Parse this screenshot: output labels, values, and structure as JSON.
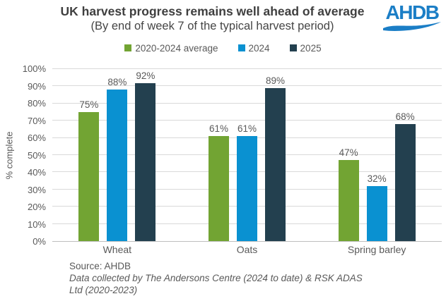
{
  "header": {
    "title": "UK harvest progress remains well ahead of average",
    "subtitle": "(By end of week 7 of the typical harvest period)",
    "logo": {
      "text": "AHDB",
      "color": "#1B7EC6"
    }
  },
  "chart_data": {
    "type": "bar",
    "title": "UK harvest progress remains well ahead of average",
    "subtitle": "(By end of week 7 of the typical harvest period)",
    "categories": [
      "Wheat",
      "Oats",
      "Spring barley"
    ],
    "series": [
      {
        "name": "2020-2024 average",
        "color": "#72A433",
        "values": [
          75,
          61,
          47
        ]
      },
      {
        "name": "2024",
        "color": "#0A91D1",
        "values": [
          88,
          61,
          32
        ]
      },
      {
        "name": "2025",
        "color": "#23404F",
        "values": [
          92,
          89,
          68
        ]
      }
    ],
    "xlabel": "",
    "ylabel": "% complete",
    "ylim": [
      0,
      100
    ],
    "ytick_step": 10,
    "ytick_suffix": "%",
    "value_label_format": "{v}%",
    "grid": true,
    "legend_position": "top",
    "gridline_color": "#D9D9D9",
    "axis_line_color": "#BFBFBF",
    "label_color": "#595959"
  },
  "footer": {
    "source": "Source: AHDB",
    "note_lines": [
      "Data collected by The Andersons Centre (2024 to date) & RSK ADAS",
      "Ltd (2020-2023)"
    ]
  }
}
